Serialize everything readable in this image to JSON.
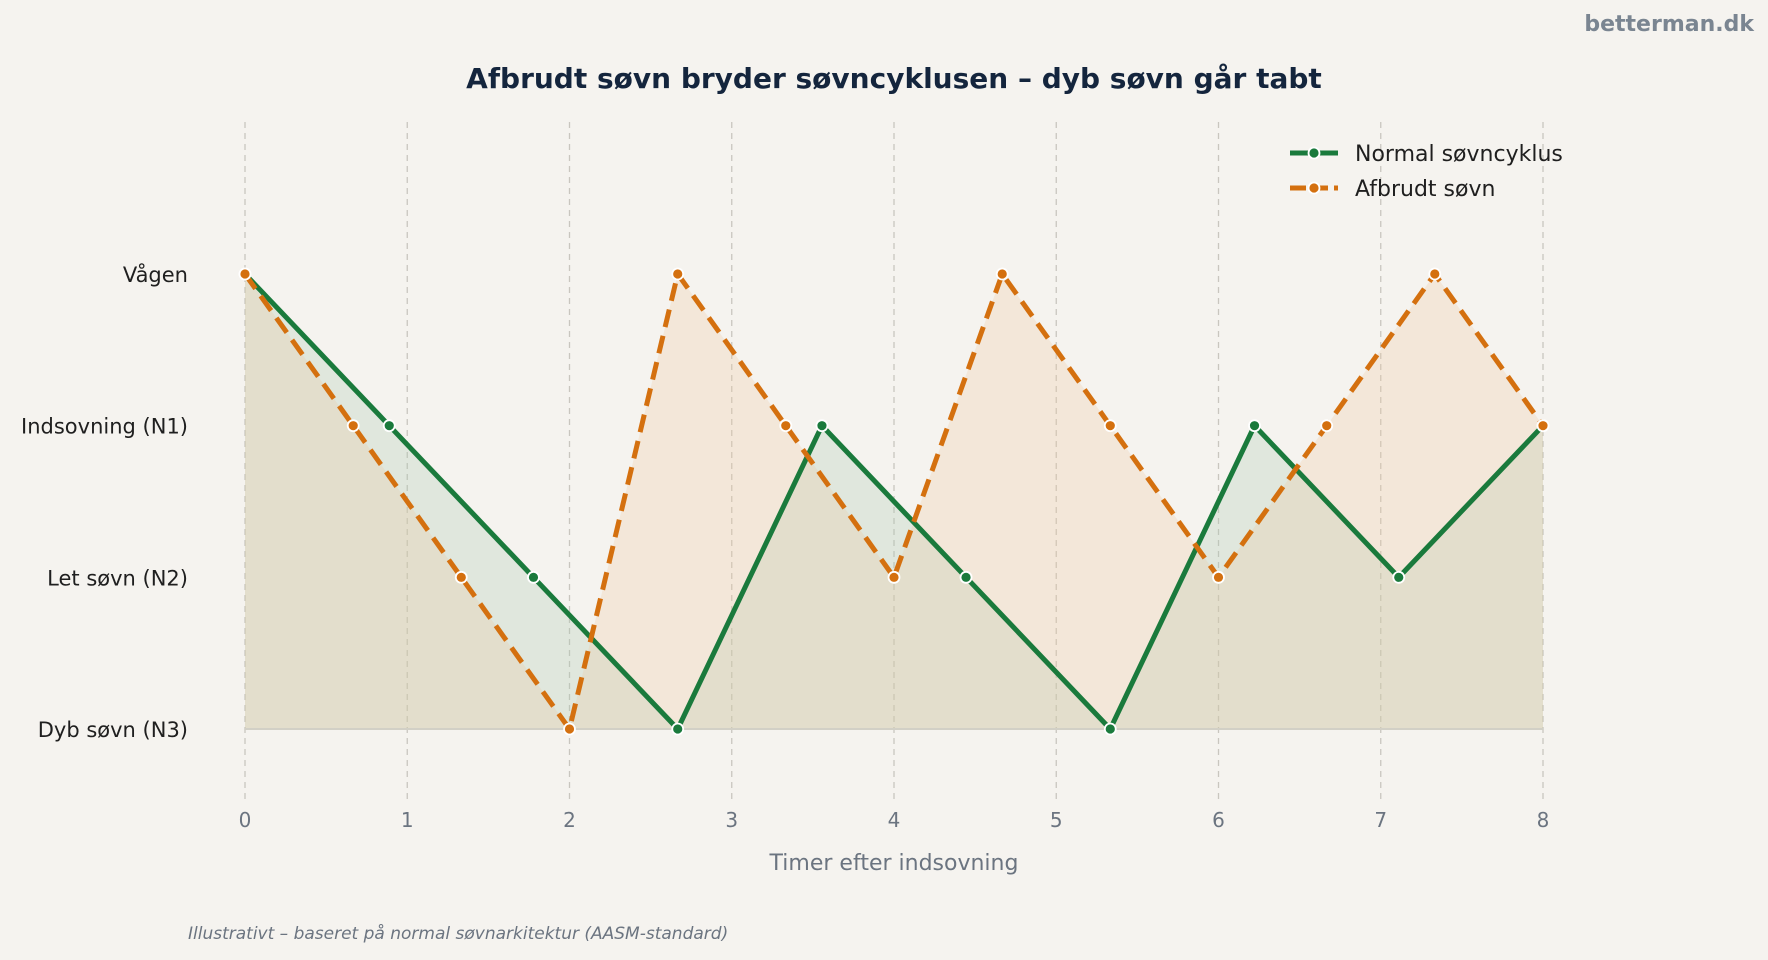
{
  "brand": "betterman.dk",
  "footnote": "Illustrativt – baseret på normal søvnarkitektur (AASM-standard)",
  "chart_data": {
    "type": "line",
    "title": "Afbrudt søvn bryder søvncyklusen – dyb søvn går tabt",
    "xlabel": "Timer efter indsovning",
    "ylabel": "",
    "xlim": [
      0,
      8
    ],
    "ylim": [
      0,
      3
    ],
    "x_ticks": [
      0,
      1,
      2,
      3,
      4,
      5,
      6,
      7,
      8
    ],
    "y_ticks": [
      {
        "value": 3,
        "label": "Vågen"
      },
      {
        "value": 2,
        "label": "Indsovning (N1)"
      },
      {
        "value": 1,
        "label": "Let søvn (N2)"
      },
      {
        "value": 0,
        "label": "Dyb søvn (N3)"
      }
    ],
    "grid": "vertical-dashed",
    "legend": "top-right",
    "series": [
      {
        "name": "Normal søvncyklus",
        "style": "solid",
        "color": "#1a7a3c",
        "x": [
          0,
          0.889,
          1.778,
          2.667,
          3.556,
          4.444,
          5.333,
          6.222,
          7.111,
          8.0
        ],
        "y": [
          3,
          2,
          1,
          0,
          2,
          1,
          0,
          2,
          1,
          2
        ]
      },
      {
        "name": "Afbrudt søvn",
        "style": "dashed",
        "color": "#d4700f",
        "x": [
          0,
          0.667,
          1.333,
          2.0,
          2.667,
          3.333,
          4.0,
          4.667,
          5.333,
          6.0,
          6.667,
          7.333,
          8.0
        ],
        "y": [
          3,
          2,
          1,
          0,
          3,
          2,
          1,
          3,
          2,
          1,
          2,
          3,
          2
        ]
      }
    ]
  }
}
